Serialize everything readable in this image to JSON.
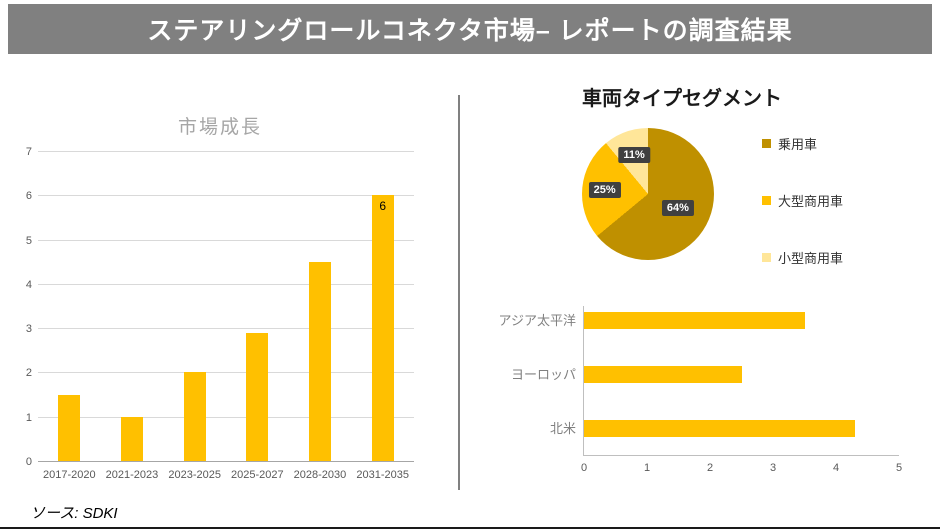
{
  "header": {
    "title": "ステアリングロールコネクタ市場– レポートの調査結果",
    "bg_color": "#808080"
  },
  "source_note": "ソース: SDKI",
  "colors": {
    "accent_gold": "#FFC000",
    "divider": "#808080"
  },
  "chart_data": [
    {
      "type": "bar",
      "title": "市場成長",
      "categories": [
        "2017-2020",
        "2021-2023",
        "2023-2025",
        "2025-2027",
        "2028-2030",
        "2031-2035"
      ],
      "values": [
        1.5,
        1,
        2,
        2.9,
        4.5,
        6
      ],
      "data_labels": [
        "",
        "",
        "",
        "",
        "",
        "6"
      ],
      "ylim": [
        0,
        7
      ],
      "yticks": [
        0,
        1,
        2,
        3,
        4,
        5,
        6,
        7
      ],
      "grid": true,
      "legend": "none",
      "bar_color": "#FFC000",
      "title_color": "#A6A6A6"
    },
    {
      "type": "pie",
      "title": "車両タイプセグメント",
      "labels": [
        "乗用車",
        "大型商用車",
        "小型商用車"
      ],
      "values": [
        64,
        25,
        11
      ],
      "percent_labels": [
        "64%",
        "25%",
        "11%"
      ],
      "colors": [
        "#BF9000",
        "#FFC000",
        "#FFE699"
      ],
      "label_box_color": "#404040",
      "legend_position": "right"
    },
    {
      "type": "bar",
      "orientation": "horizontal",
      "categories": [
        "アジア太平洋",
        "ヨーロッパ",
        "北米"
      ],
      "values": [
        3.5,
        2.5,
        4.3
      ],
      "xlim": [
        0,
        5
      ],
      "xticks": [
        0,
        1,
        2,
        3,
        4,
        5
      ],
      "grid": false,
      "legend": "none",
      "bar_color": "#FFC000"
    }
  ]
}
